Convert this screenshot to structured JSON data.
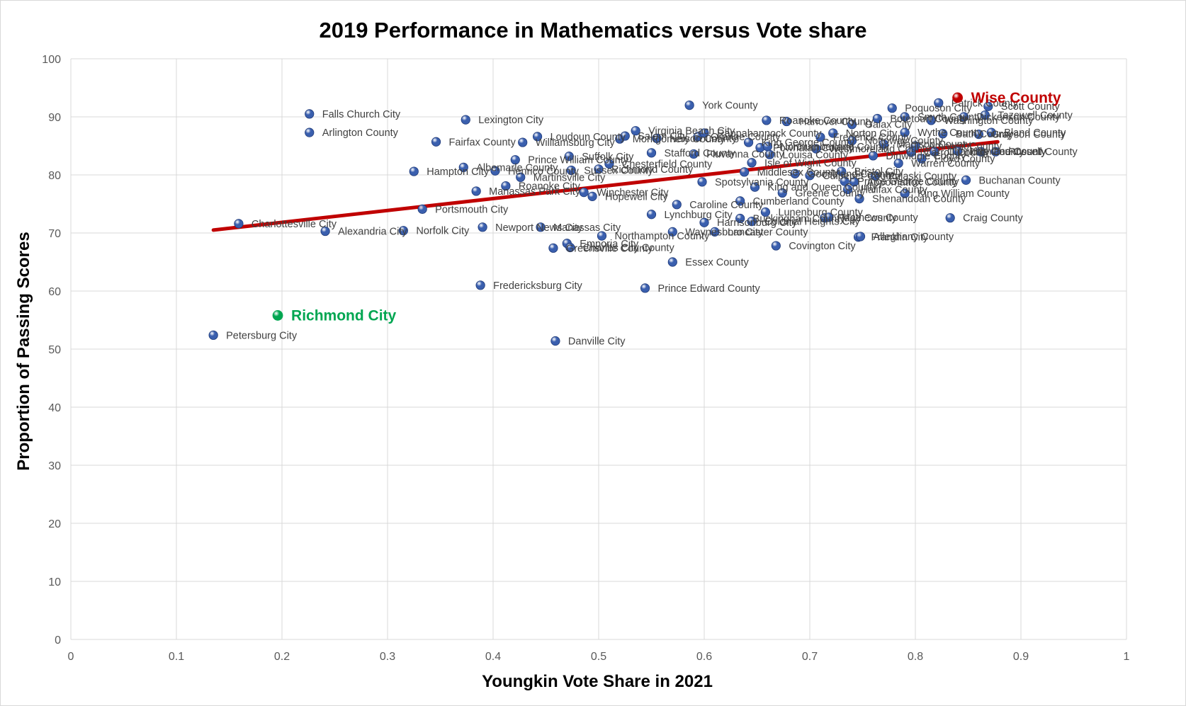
{
  "chart_data": {
    "type": "scatter",
    "title": "2019 Performance in Mathematics versus Vote share",
    "xlabel": "Youngkin Vote Share in 2021",
    "ylabel": "Proportion of Passing Scores",
    "xlim": [
      0,
      1
    ],
    "ylim": [
      0,
      100
    ],
    "xticks": [
      "0",
      "0.1",
      "0.2",
      "0.3",
      "0.4",
      "0.5",
      "0.6",
      "0.7",
      "0.8",
      "0.9",
      "1"
    ],
    "yticks": [
      "0",
      "10",
      "20",
      "30",
      "40",
      "50",
      "60",
      "70",
      "80",
      "90",
      "100"
    ],
    "grid": true,
    "legend": "none",
    "colors": {
      "point": "#3a5fae",
      "trendline": "#c00000",
      "highlight_red": "#c00000",
      "highlight_green": "#00a651",
      "grid": "#d9d9d9"
    },
    "trendline": {
      "x": [
        0.135,
        0.878
      ],
      "y": [
        70.5,
        85.7
      ]
    },
    "highlights": [
      {
        "name": "Wise County",
        "x": 0.84,
        "y": 93.3,
        "color": "#c00000"
      },
      {
        "name": "Richmond City",
        "x": 0.196,
        "y": 55.8,
        "color": "#00a651"
      }
    ],
    "points": [
      {
        "name": "Falls Church City",
        "x": 0.226,
        "y": 90.5
      },
      {
        "name": "Arlington County",
        "x": 0.226,
        "y": 87.3
      },
      {
        "name": "Charlottesville City",
        "x": 0.159,
        "y": 71.6
      },
      {
        "name": "Alexandria City",
        "x": 0.241,
        "y": 70.3
      },
      {
        "name": "Petersburg City",
        "x": 0.135,
        "y": 52.4
      },
      {
        "name": "Norfolk City",
        "x": 0.315,
        "y": 70.4
      },
      {
        "name": "Hampton City",
        "x": 0.325,
        "y": 80.6
      },
      {
        "name": "Portsmouth City",
        "x": 0.333,
        "y": 74.1
      },
      {
        "name": "Fairfax County",
        "x": 0.346,
        "y": 85.7
      },
      {
        "name": "Lexington City",
        "x": 0.374,
        "y": 89.5
      },
      {
        "name": "Albemarle County",
        "x": 0.372,
        "y": 81.3
      },
      {
        "name": "Manassas Park City",
        "x": 0.384,
        "y": 77.2
      },
      {
        "name": "Newport News City",
        "x": 0.39,
        "y": 71.0
      },
      {
        "name": "Fredericksburg City",
        "x": 0.388,
        "y": 61.0
      },
      {
        "name": "Roanoke City",
        "x": 0.412,
        "y": 78.1
      },
      {
        "name": "Henrico County",
        "x": 0.402,
        "y": 80.7
      },
      {
        "name": "Prince William County",
        "x": 0.421,
        "y": 82.6
      },
      {
        "name": "Martinsville City",
        "x": 0.426,
        "y": 79.6
      },
      {
        "name": "Williamsburg City",
        "x": 0.428,
        "y": 85.6
      },
      {
        "name": "Loudoun County",
        "x": 0.442,
        "y": 86.6
      },
      {
        "name": "Manassas City",
        "x": 0.445,
        "y": 71.0
      },
      {
        "name": "Danville City",
        "x": 0.459,
        "y": 51.4
      },
      {
        "name": "Greensville County",
        "x": 0.457,
        "y": 67.4
      },
      {
        "name": "Emporia City",
        "x": 0.47,
        "y": 68.2
      },
      {
        "name": "Suffolk City",
        "x": 0.472,
        "y": 83.2
      },
      {
        "name": "Charles City County",
        "x": 0.473,
        "y": 67.5
      },
      {
        "name": "Sussex County",
        "x": 0.474,
        "y": 80.8
      },
      {
        "name": "Winchester City",
        "x": 0.486,
        "y": 77.0
      },
      {
        "name": "Hopewell City",
        "x": 0.494,
        "y": 76.3
      },
      {
        "name": "Richmond County",
        "x": 0.5,
        "y": 81.0
      },
      {
        "name": "Northampton County",
        "x": 0.503,
        "y": 69.5
      },
      {
        "name": "Chesterfield County",
        "x": 0.51,
        "y": 81.9
      },
      {
        "name": "Montgomery County",
        "x": 0.52,
        "y": 86.2
      },
      {
        "name": "Salem City",
        "x": 0.525,
        "y": 86.7
      },
      {
        "name": "Virginia Beach City",
        "x": 0.535,
        "y": 87.6
      },
      {
        "name": "Prince Edward County",
        "x": 0.544,
        "y": 60.5
      },
      {
        "name": "Lynchburg City",
        "x": 0.55,
        "y": 73.2
      },
      {
        "name": "Stafford County",
        "x": 0.55,
        "y": 83.8
      },
      {
        "name": "Nelson County",
        "x": 0.555,
        "y": 86.3
      },
      {
        "name": "Essex County",
        "x": 0.57,
        "y": 65.0
      },
      {
        "name": "Waynesboro City",
        "x": 0.57,
        "y": 70.2
      },
      {
        "name": "Caroline County",
        "x": 0.574,
        "y": 74.9
      },
      {
        "name": "York County",
        "x": 0.586,
        "y": 92.0
      },
      {
        "name": "Fluvanna County",
        "x": 0.59,
        "y": 83.6
      },
      {
        "name": "Orange County",
        "x": 0.594,
        "y": 86.6
      },
      {
        "name": "Rappahannock County",
        "x": 0.6,
        "y": 87.2
      },
      {
        "name": "Harrisonburg City",
        "x": 0.6,
        "y": 71.8
      },
      {
        "name": "Spotsylvania County",
        "x": 0.598,
        "y": 78.8
      },
      {
        "name": "Lancaster County",
        "x": 0.61,
        "y": 70.2
      },
      {
        "name": "Cumberland County",
        "x": 0.634,
        "y": 75.5
      },
      {
        "name": "Buckingham County",
        "x": 0.634,
        "y": 72.5
      },
      {
        "name": "Middlesex County",
        "x": 0.638,
        "y": 80.5
      },
      {
        "name": "King George County",
        "x": 0.642,
        "y": 85.6
      },
      {
        "name": "Isle of Wight County",
        "x": 0.645,
        "y": 82.1
      },
      {
        "name": "Colonial Heights City",
        "x": 0.645,
        "y": 72.0
      },
      {
        "name": "King and Queen County",
        "x": 0.648,
        "y": 77.9
      },
      {
        "name": "Powhatan County",
        "x": 0.653,
        "y": 84.7
      },
      {
        "name": "Lunenburg County",
        "x": 0.658,
        "y": 73.6
      },
      {
        "name": "Roanoke County",
        "x": 0.659,
        "y": 89.4
      },
      {
        "name": "Northumberland County",
        "x": 0.66,
        "y": 84.9
      },
      {
        "name": "Louisa County",
        "x": 0.662,
        "y": 83.5
      },
      {
        "name": "Covington City",
        "x": 0.668,
        "y": 67.8
      },
      {
        "name": "Greene County",
        "x": 0.674,
        "y": 76.9
      },
      {
        "name": "Hanover County",
        "x": 0.678,
        "y": 89.2
      },
      {
        "name": "Goochland County",
        "x": 0.686,
        "y": 80.2
      },
      {
        "name": "Culpeper County",
        "x": 0.7,
        "y": 79.9
      },
      {
        "name": "Westmoreland County",
        "x": 0.706,
        "y": 84.5
      },
      {
        "name": "Frederick County",
        "x": 0.71,
        "y": 86.5
      },
      {
        "name": "Page County",
        "x": 0.714,
        "y": 72.6
      },
      {
        "name": "Mathews County",
        "x": 0.718,
        "y": 72.7
      },
      {
        "name": "Norton City",
        "x": 0.722,
        "y": 87.2
      },
      {
        "name": "Bristol City",
        "x": 0.73,
        "y": 80.6
      },
      {
        "name": "Prince George County",
        "x": 0.733,
        "y": 78.9
      },
      {
        "name": "Galax City",
        "x": 0.74,
        "y": 88.7
      },
      {
        "name": "Appomattox County",
        "x": 0.742,
        "y": 78.8
      },
      {
        "name": "Halifax County",
        "x": 0.736,
        "y": 77.5
      },
      {
        "name": "Nottoway County",
        "x": 0.74,
        "y": 85.9
      },
      {
        "name": "Franklin City",
        "x": 0.746,
        "y": 69.3
      },
      {
        "name": "Alleghany County",
        "x": 0.748,
        "y": 69.4
      },
      {
        "name": "Shenandoah County",
        "x": 0.747,
        "y": 75.9
      },
      {
        "name": "Dinwiddie County",
        "x": 0.76,
        "y": 83.3
      },
      {
        "name": "Pulaski County",
        "x": 0.762,
        "y": 79.8
      },
      {
        "name": "Botetourt County",
        "x": 0.764,
        "y": 89.7
      },
      {
        "name": "Madison County",
        "x": 0.77,
        "y": 85.3
      },
      {
        "name": "Poquoson City",
        "x": 0.778,
        "y": 91.5
      },
      {
        "name": "Warren County",
        "x": 0.784,
        "y": 82.0
      },
      {
        "name": "King William County",
        "x": 0.79,
        "y": 76.8
      },
      {
        "name": "Wythe County",
        "x": 0.79,
        "y": 87.3
      },
      {
        "name": "Smyth County",
        "x": 0.79,
        "y": 90.0
      },
      {
        "name": "Carroll County",
        "x": 0.796,
        "y": 83.9
      },
      {
        "name": "Amherst County",
        "x": 0.8,
        "y": 85.0
      },
      {
        "name": "Floyd County",
        "x": 0.806,
        "y": 82.8
      },
      {
        "name": "Washington County",
        "x": 0.815,
        "y": 89.4
      },
      {
        "name": "Charlotte County",
        "x": 0.818,
        "y": 84.0
      },
      {
        "name": "Patrick County",
        "x": 0.822,
        "y": 92.4
      },
      {
        "name": "Bath County",
        "x": 0.826,
        "y": 87.1
      },
      {
        "name": "Craig County",
        "x": 0.833,
        "y": 72.6
      },
      {
        "name": "Highland County",
        "x": 0.84,
        "y": 84.1
      },
      {
        "name": "Dickenson County",
        "x": 0.846,
        "y": 90.0
      },
      {
        "name": "Buchanan County",
        "x": 0.848,
        "y": 79.1
      },
      {
        "name": "Grayson County",
        "x": 0.86,
        "y": 87.0
      },
      {
        "name": "Lee County",
        "x": 0.862,
        "y": 84.0
      },
      {
        "name": "Tazewell County",
        "x": 0.866,
        "y": 90.3
      },
      {
        "name": "Scott County",
        "x": 0.869,
        "y": 91.8
      },
      {
        "name": "Bland County",
        "x": 0.872,
        "y": 87.3
      },
      {
        "name": "Russell County",
        "x": 0.876,
        "y": 84.0
      }
    ]
  }
}
